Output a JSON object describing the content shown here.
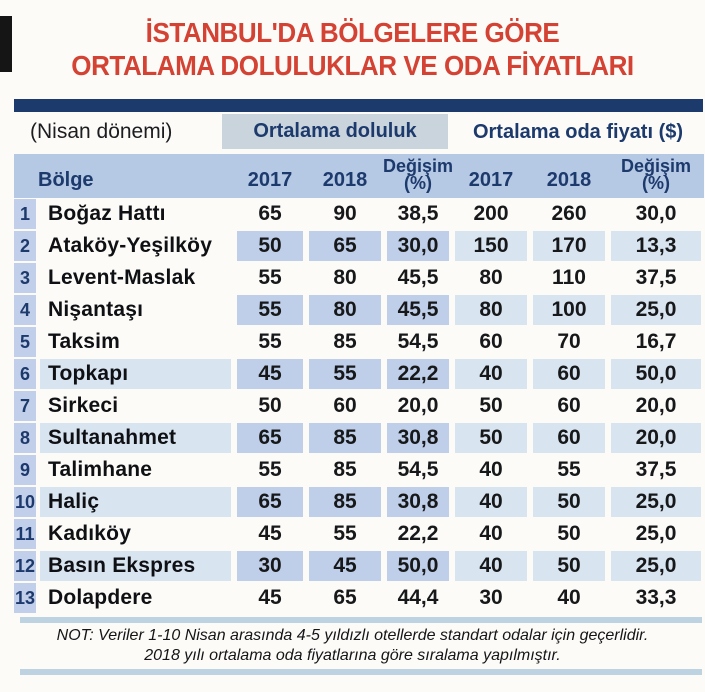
{
  "title": {
    "line1": "İSTANBUL'DA BÖLGELERE GÖRE",
    "line2": "ORTALAMA DOLULUKLAR VE ODA FİYATLARI"
  },
  "table": {
    "period_label": "(Nisan dönemi)",
    "group_occupancy": "Ortalama doluluk",
    "group_price": "Ortalama oda fiyatı ($)",
    "columns": {
      "region": "Bölge",
      "occ_2017": "2017",
      "occ_2018": "2018",
      "occ_change_line1": "Değişim",
      "occ_change_line2": "(%)",
      "price_2017": "2017",
      "price_2018": "2018",
      "price_change_line1": "Değişim",
      "price_change_line2": "(%)"
    },
    "rows": [
      {
        "rank": "1",
        "name": "Boğaz Hattı",
        "occ2017": "65",
        "occ2018": "90",
        "occ_chg": "38,5",
        "price2017": "200",
        "price2018": "260",
        "price_chg": "30,0",
        "shade": "none"
      },
      {
        "rank": "2",
        "name": "Ataköy-Yeşilköy",
        "occ2017": "50",
        "occ2018": "65",
        "occ_chg": "30,0",
        "price2017": "150",
        "price2018": "170",
        "price_chg": "13,3",
        "shade": "partial"
      },
      {
        "rank": "3",
        "name": "Levent-Maslak",
        "occ2017": "55",
        "occ2018": "80",
        "occ_chg": "45,5",
        "price2017": "80",
        "price2018": "110",
        "price_chg": "37,5",
        "shade": "none"
      },
      {
        "rank": "4",
        "name": "Nişantaşı",
        "occ2017": "55",
        "occ2018": "80",
        "occ_chg": "45,5",
        "price2017": "80",
        "price2018": "100",
        "price_chg": "25,0",
        "shade": "partial"
      },
      {
        "rank": "5",
        "name": "Taksim",
        "occ2017": "55",
        "occ2018": "85",
        "occ_chg": "54,5",
        "price2017": "60",
        "price2018": "70",
        "price_chg": "16,7",
        "shade": "none"
      },
      {
        "rank": "6",
        "name": "Topkapı",
        "occ2017": "45",
        "occ2018": "55",
        "occ_chg": "22,2",
        "price2017": "40",
        "price2018": "60",
        "price_chg": "50,0",
        "shade": "full"
      },
      {
        "rank": "7",
        "name": "Sirkeci",
        "occ2017": "50",
        "occ2018": "60",
        "occ_chg": "20,0",
        "price2017": "50",
        "price2018": "60",
        "price_chg": "20,0",
        "shade": "none"
      },
      {
        "rank": "8",
        "name": "Sultanahmet",
        "occ2017": "65",
        "occ2018": "85",
        "occ_chg": "30,8",
        "price2017": "50",
        "price2018": "60",
        "price_chg": "20,0",
        "shade": "full"
      },
      {
        "rank": "9",
        "name": "Talimhane",
        "occ2017": "55",
        "occ2018": "85",
        "occ_chg": "54,5",
        "price2017": "40",
        "price2018": "55",
        "price_chg": "37,5",
        "shade": "none"
      },
      {
        "rank": "10",
        "name": "Haliç",
        "occ2017": "65",
        "occ2018": "85",
        "occ_chg": "30,8",
        "price2017": "40",
        "price2018": "50",
        "price_chg": "25,0",
        "shade": "full"
      },
      {
        "rank": "11",
        "name": "Kadıköy",
        "occ2017": "45",
        "occ2018": "55",
        "occ_chg": "22,2",
        "price2017": "40",
        "price2018": "50",
        "price_chg": "25,0",
        "shade": "none"
      },
      {
        "rank": "12",
        "name": "Basın Ekspres",
        "occ2017": "30",
        "occ2018": "45",
        "occ_chg": "50,0",
        "price2017": "40",
        "price2018": "50",
        "price_chg": "25,0",
        "shade": "full"
      },
      {
        "rank": "13",
        "name": "Dolapdere",
        "occ2017": "45",
        "occ2018": "65",
        "occ_chg": "44,4",
        "price2017": "30",
        "price2018": "40",
        "price_chg": "33,3",
        "shade": "none"
      }
    ]
  },
  "note": {
    "line1": "NOT: Veriler 1-10 Nisan arasında 4-5 yıldızlı otellerde standart odalar için geçerlidir.",
    "line2": "2018 yılı ortalama oda fiyatlarına göre sıralama yapılmıştır."
  },
  "colors": {
    "title_red": "#d44234",
    "navy": "#1d3a6d",
    "header_blue": "#b5c8e4",
    "cell_medium_blue": "#bfcfe9",
    "cell_light_blue": "#d9e4f1",
    "group_box_gray": "#cad4dd",
    "note_bar_blue": "#bdd3e2"
  }
}
